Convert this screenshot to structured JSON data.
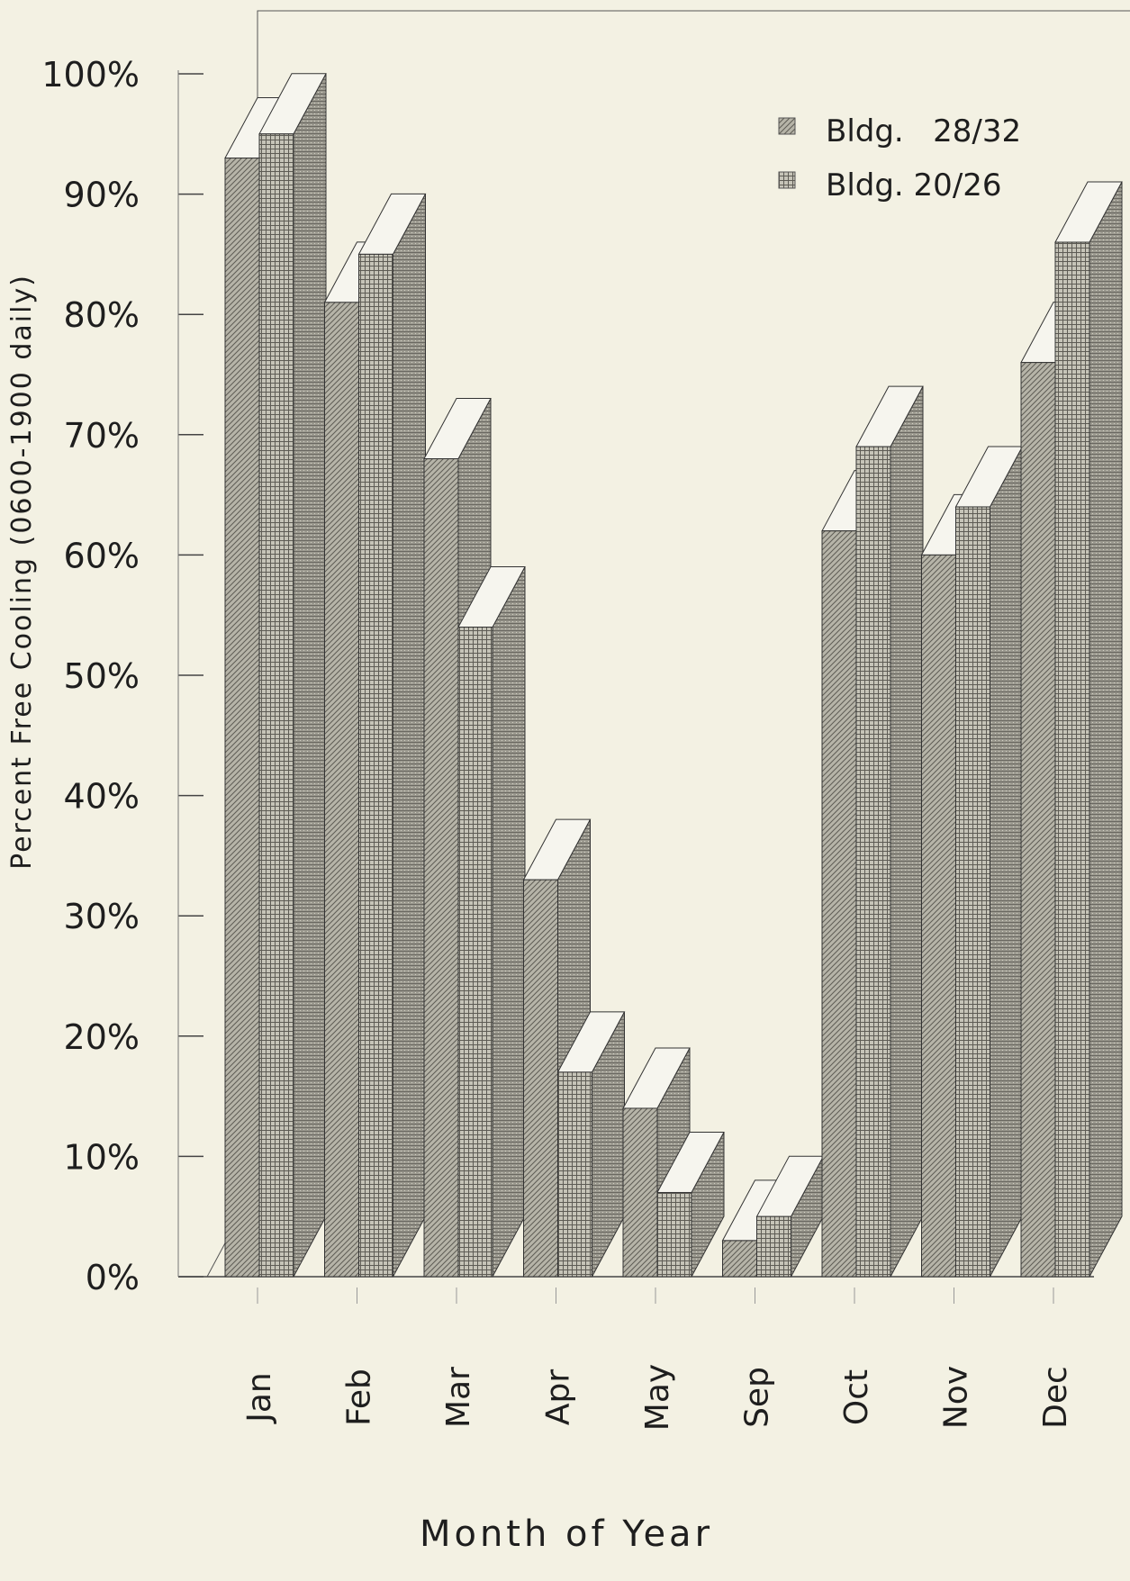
{
  "chart_data": {
    "type": "bar",
    "title": "",
    "xlabel": "Month of Year",
    "ylabel": "Percent Free Cooling (0600-1900 daily)",
    "ylim": [
      0,
      100
    ],
    "yticks": [
      "0%",
      "10%",
      "20%",
      "30%",
      "40%",
      "50%",
      "60%",
      "70%",
      "80%",
      "90%",
      "100%"
    ],
    "categories": [
      "Jan",
      "Feb",
      "Mar",
      "Apr",
      "May",
      "Sep",
      "Oct",
      "Nov",
      "Dec"
    ],
    "series": [
      {
        "name": "Bldg.   28/32",
        "pattern": "diagonal",
        "values": [
          93,
          81,
          68,
          33,
          14,
          3,
          62,
          60,
          76
        ]
      },
      {
        "name": "Bldg. 20/26",
        "pattern": "grid",
        "values": [
          95,
          85,
          54,
          17,
          7,
          5,
          69,
          64,
          86
        ]
      }
    ],
    "legend_position": "top-right",
    "grid": false,
    "style": "3d"
  },
  "colors": {
    "background": "#f3f1e3",
    "front": "#b9b7ac",
    "side": "#8e8c83",
    "top": "#f6f5ee",
    "line": "#2a2a2a"
  }
}
